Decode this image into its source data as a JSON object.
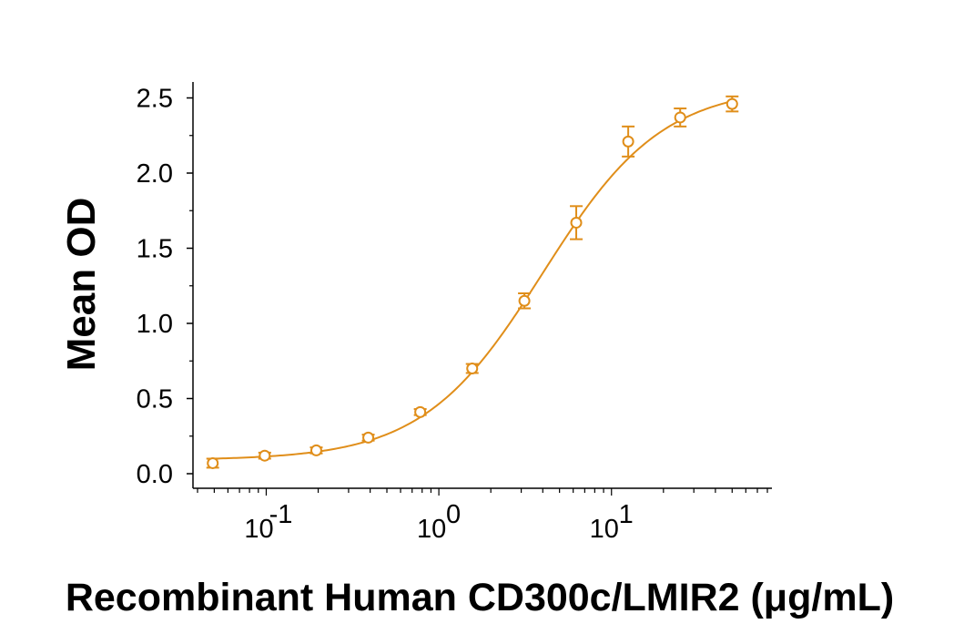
{
  "chart_data": {
    "type": "scatter",
    "title": "",
    "xlabel": "Recombinant Human CD300c/LMIR2 (μg/mL)",
    "ylabel": "Mean OD",
    "x_scale": "log",
    "xlim": [
      0.04,
      80
    ],
    "ylim": [
      0,
      2.6
    ],
    "x_ticks": [
      {
        "value": 0.1,
        "base": "10",
        "exp": "-1"
      },
      {
        "value": 1,
        "base": "10",
        "exp": "0"
      },
      {
        "value": 10,
        "base": "10",
        "exp": "1"
      }
    ],
    "y_ticks": [
      {
        "value": 0.0,
        "label": "0.0"
      },
      {
        "value": 0.5,
        "label": "0.5"
      },
      {
        "value": 1.0,
        "label": "1.0"
      },
      {
        "value": 1.5,
        "label": "1.5"
      },
      {
        "value": 2.0,
        "label": "2.0"
      },
      {
        "value": 2.5,
        "label": "2.5"
      }
    ],
    "grid": false,
    "legend": "none",
    "color": "#E08E1A",
    "series": [
      {
        "points": [
          {
            "x": 0.049,
            "y": 0.07,
            "err": 0.03
          },
          {
            "x": 0.098,
            "y": 0.12,
            "err": 0.02
          },
          {
            "x": 0.195,
            "y": 0.155,
            "err": 0.02
          },
          {
            "x": 0.39,
            "y": 0.24,
            "err": 0.02
          },
          {
            "x": 0.78,
            "y": 0.41,
            "err": 0.02
          },
          {
            "x": 1.56,
            "y": 0.7,
            "err": 0.03
          },
          {
            "x": 3.13,
            "y": 1.15,
            "err": 0.05
          },
          {
            "x": 6.25,
            "y": 1.67,
            "err": 0.11
          },
          {
            "x": 12.5,
            "y": 2.21,
            "err": 0.1
          },
          {
            "x": 25,
            "y": 2.37,
            "err": 0.06
          },
          {
            "x": 50,
            "y": 2.46,
            "err": 0.05
          }
        ],
        "fit": {
          "model": "4PL",
          "bottom": 0.09,
          "top": 2.58,
          "ec50": 4.0,
          "hill": 1.25
        }
      }
    ]
  }
}
